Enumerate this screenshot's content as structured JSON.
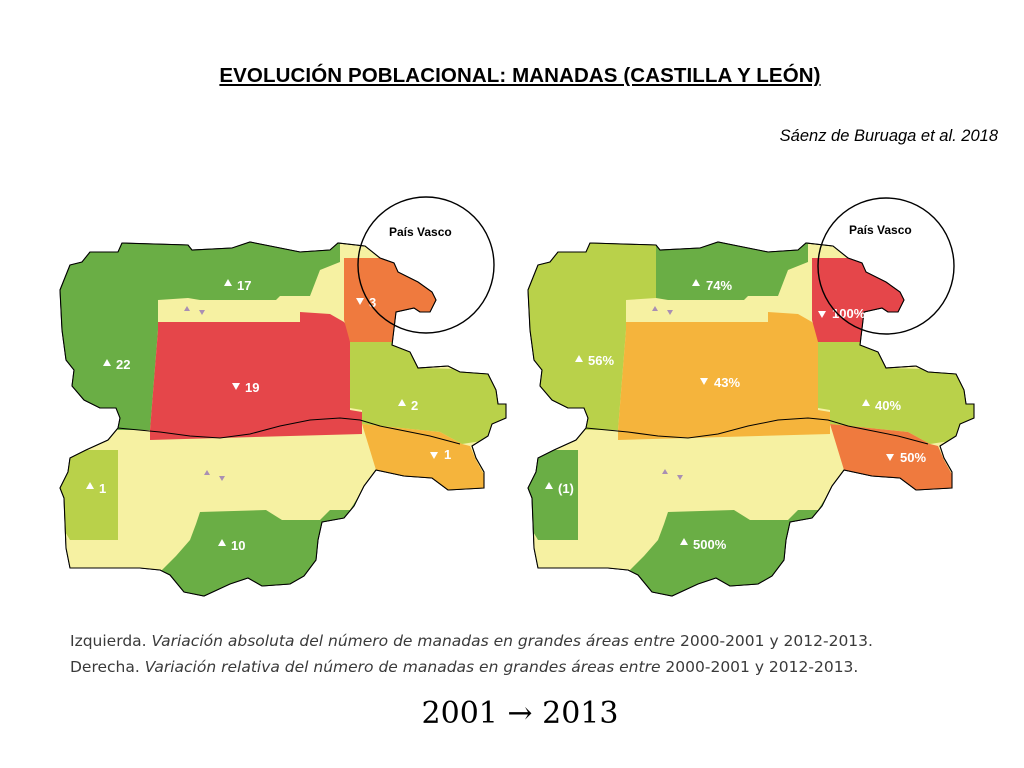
{
  "title": "EVOLUCIÓN POBLACIONAL: MANADAS (CASTILLA Y LEÓN)",
  "citation": "Sáenz de Buruaga et al. 2018",
  "highlight_label": "País Vasco",
  "colors": {
    "dark_green": "#6aae45",
    "light_green": "#b9d14a",
    "cream": "#f6f1a2",
    "orange_yellow": "#f5b43c",
    "orange": "#ef7a3e",
    "red": "#e5464a"
  },
  "map_left": {
    "areas": [
      {
        "id": "norte",
        "value": "17",
        "trend": "up"
      },
      {
        "id": "noroeste",
        "value": "22",
        "trend": "up"
      },
      {
        "id": "centro-norte",
        "value": "19",
        "trend": "down"
      },
      {
        "id": "noreste",
        "value": "3",
        "trend": "down"
      },
      {
        "id": "este",
        "value": "2",
        "trend": "up"
      },
      {
        "id": "sureste",
        "value": "1",
        "trend": "down"
      },
      {
        "id": "oeste",
        "value": "1",
        "trend": "up"
      },
      {
        "id": "sur",
        "value": "10",
        "trend": "up"
      }
    ]
  },
  "map_right": {
    "areas": [
      {
        "id": "norte",
        "value": "74%",
        "trend": "up"
      },
      {
        "id": "noroeste",
        "value": "56%",
        "trend": "up"
      },
      {
        "id": "centro-norte",
        "value": "43%",
        "trend": "down"
      },
      {
        "id": "noreste",
        "value": "100%",
        "trend": "down"
      },
      {
        "id": "este",
        "value": "40%",
        "trend": "up"
      },
      {
        "id": "sureste",
        "value": "50%",
        "trend": "down"
      },
      {
        "id": "oeste",
        "value": "(1)",
        "trend": "up"
      },
      {
        "id": "sur",
        "value": "500%",
        "trend": "up"
      }
    ]
  },
  "caption": {
    "left_label": "Izquierda.",
    "left_text": "Variación absoluta del número de manadas en grandes áreas entre",
    "left_range": "2000-2001 y 2012-2013.",
    "right_label": "Derecha.",
    "right_text": "Variación relativa del número de manadas en grandes áreas entre",
    "right_range": "2000-2001 y 2012-2013."
  },
  "years": {
    "from": "2001",
    "arrow": "→",
    "to": "2013"
  }
}
